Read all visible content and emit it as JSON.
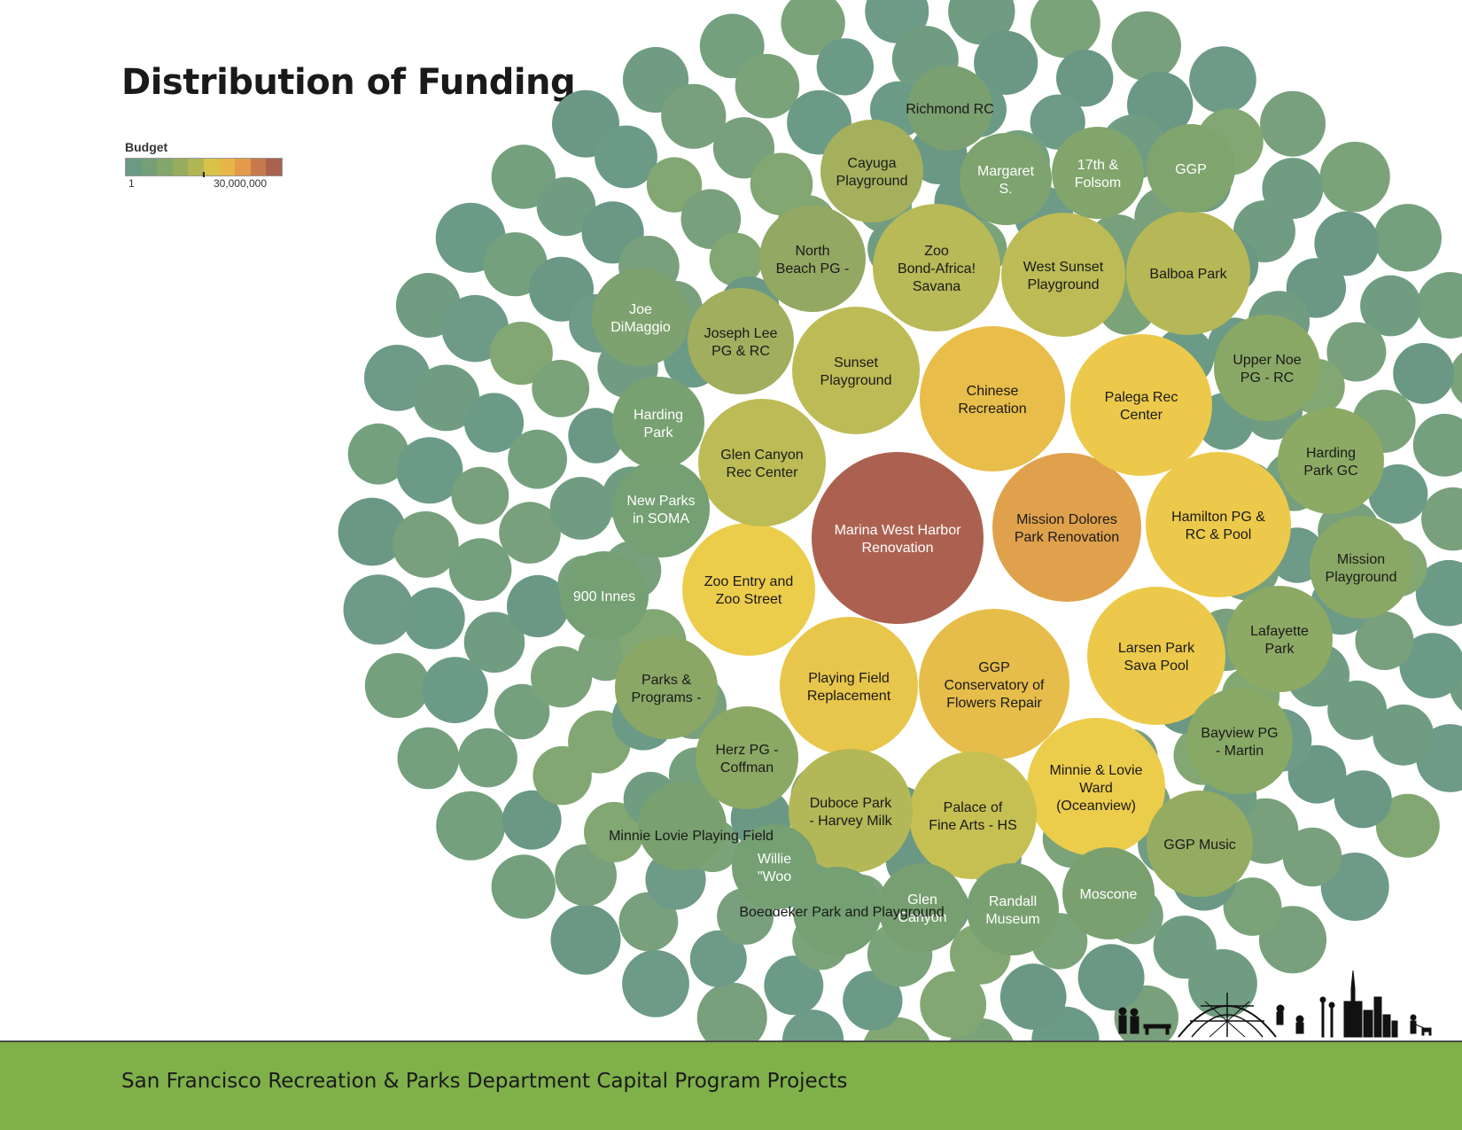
{
  "title": "Distribution of Funding",
  "legend": {
    "title": "Budget",
    "min_label": "1",
    "max_label": "30,000,000",
    "colors": [
      "#6a9a84",
      "#769f78",
      "#83a66a",
      "#96ad5e",
      "#b0b654",
      "#d9c249",
      "#e8b647",
      "#e39a4a",
      "#c87a4d",
      "#a9624f"
    ]
  },
  "footer": "San Francisco Recreation & Parks Department Capital Program Projects",
  "chart_data": {
    "type": "packed-bubble",
    "title": "Distribution of Funding",
    "color_scale": {
      "label": "Budget",
      "min": 1,
      "max": 30000000
    },
    "projects": [
      {
        "name": "Marina West Harbor Renovation",
        "lines": [
          "Marina West Harbor",
          "Renovation"
        ],
        "budget": 30000000,
        "color": "#ac6150",
        "text_color": "#ffffff"
      },
      {
        "name": "Mission Dolores Park Renovation",
        "lines": [
          "Mission Dolores",
          "Park Renovation"
        ],
        "budget": 18000000,
        "color": "#e0a14c",
        "text_color": "#1a1a1a"
      },
      {
        "name": "Chinese Recreation",
        "lines": [
          "Chinese",
          "Recreation"
        ],
        "budget": 15000000,
        "color": "#e8bd4a",
        "text_color": "#1a1a1a"
      },
      {
        "name": "Palega Rec Center",
        "lines": [
          "Palega Rec",
          "Center"
        ],
        "budget": 14000000,
        "color": "#ecc94b",
        "text_color": "#1a1a1a"
      },
      {
        "name": "Hamilton PG & RC & Pool",
        "lines": [
          "Hamilton PG &",
          "RC & Pool"
        ],
        "budget": 14000000,
        "color": "#ecc94b",
        "text_color": "#1a1a1a"
      },
      {
        "name": "GGP Conservatory of Flowers Repair",
        "lines": [
          "GGP",
          "Conservatory of",
          "Flowers Repair"
        ],
        "budget": 14500000,
        "color": "#e6bd4b",
        "text_color": "#1a1a1a"
      },
      {
        "name": "Larsen Park Sava Pool",
        "lines": [
          "Larsen Park",
          "Sava Pool"
        ],
        "budget": 13000000,
        "color": "#ecc94b",
        "text_color": "#1a1a1a"
      },
      {
        "name": "Playing Field Replacement",
        "lines": [
          "Playing Field",
          "Replacement"
        ],
        "budget": 13000000,
        "color": "#e8c64b",
        "text_color": "#1a1a1a"
      },
      {
        "name": "Zoo Entry and Zoo Street",
        "lines": [
          "Zoo Entry and",
          "Zoo Street"
        ],
        "budget": 12000000,
        "color": "#eccc4b",
        "text_color": "#1a1a1a"
      },
      {
        "name": "Minnie & Lovie Ward (Oceanview)",
        "lines": [
          "Minnie & Lovie",
          "Ward",
          "(Oceanview)"
        ],
        "budget": 12000000,
        "color": "#eccc4b",
        "text_color": "#1a1a1a"
      },
      {
        "name": "Palace of Fine Arts - HS",
        "lines": [
          "Palace of",
          "Fine Arts - HS"
        ],
        "budget": 10000000,
        "color": "#c6c053",
        "text_color": "#1a1a1a"
      },
      {
        "name": "Duboce Park - Harvey Milk",
        "lines": [
          "Duboce Park",
          "- Harvey Milk"
        ],
        "budget": 9000000,
        "color": "#b3b757",
        "text_color": "#1a1a1a"
      },
      {
        "name": "Glen Canyon Rec Center",
        "lines": [
          "Glen Canyon",
          "Rec Center"
        ],
        "budget": 9000000,
        "color": "#bcbb56",
        "text_color": "#1a1a1a"
      },
      {
        "name": "Sunset Playground",
        "lines": [
          "Sunset",
          "Playground"
        ],
        "budget": 9000000,
        "color": "#bdbb56",
        "text_color": "#1a1a1a"
      },
      {
        "name": "Zoo Bond-Africa! Savana",
        "lines": [
          "Zoo",
          "Bond-Africa!",
          "Savana"
        ],
        "budget": 8500000,
        "color": "#b8b957",
        "text_color": "#1a1a1a"
      },
      {
        "name": "West Sunset Playground",
        "lines": [
          "West Sunset",
          "Playground"
        ],
        "budget": 8500000,
        "color": "#bcbb56",
        "text_color": "#1a1a1a"
      },
      {
        "name": "Balboa Park",
        "lines": [
          "Balboa Park"
        ],
        "budget": 8500000,
        "color": "#b6b857",
        "text_color": "#1a1a1a"
      },
      {
        "name": "Joseph Lee PG & RC",
        "lines": [
          "Joseph Lee",
          "PG & RC"
        ],
        "budget": 6000000,
        "color": "#a1ae5e",
        "text_color": "#1a1a1a"
      },
      {
        "name": "North Beach PG -",
        "lines": [
          "North",
          "Beach PG -"
        ],
        "budget": 5500000,
        "color": "#93a862",
        "text_color": "#1a1a1a"
      },
      {
        "name": "Cayuga Playground",
        "lines": [
          "Cayuga",
          "Playground"
        ],
        "budget": 5500000,
        "color": "#a5b05d",
        "text_color": "#1a1a1a"
      },
      {
        "name": "Margaret S.",
        "lines": [
          "Margaret",
          "S."
        ],
        "budget": 4000000,
        "color": "#7ea36e",
        "text_color": "#ffffff"
      },
      {
        "name": "17th & Folsom",
        "lines": [
          "17th &",
          "Folsom"
        ],
        "budget": 4000000,
        "color": "#82a56c",
        "text_color": "#ffffff"
      },
      {
        "name": "GGP",
        "lines": [
          "GGP"
        ],
        "budget": 4000000,
        "color": "#80a46d",
        "text_color": "#ffffff"
      },
      {
        "name": "Richmond RC",
        "lines": [
          "Richmond RC"
        ],
        "budget": 3800000,
        "color": "#7aa070",
        "text_color": "#1a1a1a"
      },
      {
        "name": "Upper Noe PG - RC",
        "lines": [
          "Upper Noe",
          "PG - RC"
        ],
        "budget": 4500000,
        "color": "#8aa865",
        "text_color": "#1a1a1a"
      },
      {
        "name": "Harding Park GC",
        "lines": [
          "Harding",
          "Park GC"
        ],
        "budget": 4500000,
        "color": "#8caa64",
        "text_color": "#1a1a1a"
      },
      {
        "name": "Mission Playground",
        "lines": [
          "Mission",
          "Playground"
        ],
        "budget": 4500000,
        "color": "#8aa865",
        "text_color": "#1a1a1a"
      },
      {
        "name": "Lafayette Park",
        "lines": [
          "Lafayette",
          "Park"
        ],
        "budget": 4500000,
        "color": "#8caa64",
        "text_color": "#1a1a1a"
      },
      {
        "name": "Bayview PG - Martin",
        "lines": [
          "Bayview PG",
          "- Martin"
        ],
        "budget": 4500000,
        "color": "#88a866",
        "text_color": "#1a1a1a"
      },
      {
        "name": "GGP Music",
        "lines": [
          "GGP Music"
        ],
        "budget": 4800000,
        "color": "#94ab62",
        "text_color": "#1a1a1a"
      },
      {
        "name": "Moscone",
        "lines": [
          "Moscone"
        ],
        "budget": 3500000,
        "color": "#7aa070",
        "text_color": "#ffffff"
      },
      {
        "name": "Randall Museum",
        "lines": [
          "Randall",
          "Museum"
        ],
        "budget": 3300000,
        "color": "#79a071",
        "text_color": "#ffffff"
      },
      {
        "name": "Glen Canyon",
        "lines": [
          "Glen",
          "Canyon"
        ],
        "budget": 3000000,
        "color": "#789f71",
        "text_color": "#ffffff"
      },
      {
        "name": "Boeddeker Park and Playground",
        "lines": [
          "Boeddeker Park and Playground"
        ],
        "budget": 3000000,
        "color": "#74a073",
        "text_color": "#1a1a1a"
      },
      {
        "name": "Willie \"Woo",
        "lines": [
          "Willie",
          "\"Woo"
        ],
        "budget": 2800000,
        "color": "#74a073",
        "text_color": "#ffffff"
      },
      {
        "name": "Minnie Lovie Playing Field",
        "lines": [
          "Minnie Lovie Playing Field"
        ],
        "budget": 3000000,
        "color": "#79a170",
        "text_color": "#1a1a1a"
      },
      {
        "name": "Herz PG - Coffman",
        "lines": [
          "Herz PG -",
          "Coffman"
        ],
        "budget": 4200000,
        "color": "#8ca865",
        "text_color": "#1a1a1a"
      },
      {
        "name": "Parks & Programs -",
        "lines": [
          "Parks &",
          "Programs -"
        ],
        "budget": 4200000,
        "color": "#8aa766",
        "text_color": "#1a1a1a"
      },
      {
        "name": "900 Innes",
        "lines": [
          "900 Innes"
        ],
        "budget": 3000000,
        "color": "#74a073",
        "text_color": "#ffffff"
      },
      {
        "name": "New Parks in SOMA",
        "lines": [
          "New Parks",
          "in SOMA"
        ],
        "budget": 3000000,
        "color": "#74a073",
        "text_color": "#ffffff"
      },
      {
        "name": "Harding Park",
        "lines": [
          "Harding",
          "Park"
        ],
        "budget": 3000000,
        "color": "#78a171",
        "text_color": "#ffffff"
      },
      {
        "name": "Joe DiMaggio",
        "lines": [
          "Joe",
          "DiMaggio"
        ],
        "budget": 3000000,
        "color": "#7ea26f",
        "text_color": "#ffffff"
      }
    ]
  }
}
